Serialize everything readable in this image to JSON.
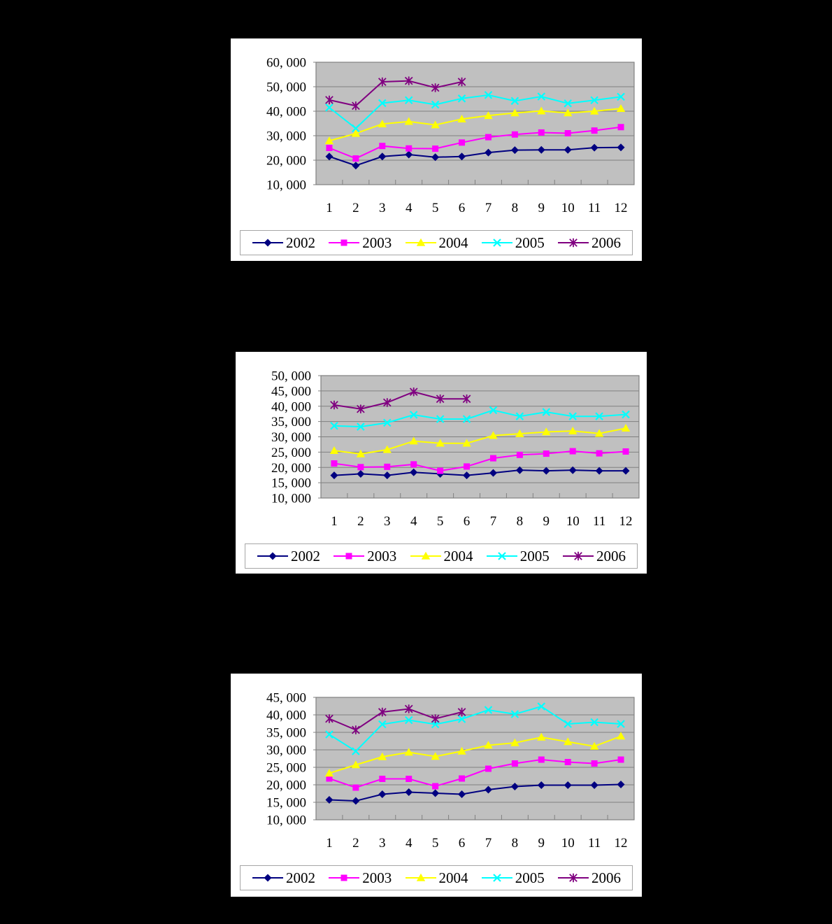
{
  "page": {
    "background": "#000000",
    "panel_background": "#ffffff"
  },
  "palette": {
    "plot_background": "#c0c0c0",
    "gridline": "#808080",
    "axis": "#808080",
    "tick_text": "#000000",
    "legend_border": "#a6a6a6"
  },
  "chart_data": [
    {
      "type": "line",
      "title": "",
      "xlabel": "",
      "ylabel": "",
      "grid": true,
      "legend_position": "bottom",
      "categories": [
        "1",
        "2",
        "3",
        "4",
        "5",
        "6",
        "7",
        "8",
        "9",
        "10",
        "11",
        "12"
      ],
      "ylim": [
        10000,
        60000
      ],
      "ytick_step": 10000,
      "ytick_labels": [
        "60, 000",
        "50, 000",
        "40, 000",
        "30, 000",
        "20, 000",
        "10, 000"
      ],
      "series": [
        {
          "name": "2002",
          "color": "#000080",
          "marker": "diamond",
          "values": [
            21500,
            17800,
            21500,
            22300,
            21200,
            21500,
            23100,
            24100,
            24200,
            24200,
            25100,
            25200
          ]
        },
        {
          "name": "2003",
          "color": "#ff00ff",
          "marker": "square",
          "values": [
            25000,
            20700,
            25800,
            24800,
            24700,
            27200,
            29400,
            30500,
            31300,
            31000,
            32100,
            33500
          ]
        },
        {
          "name": "2004",
          "color": "#ffff00",
          "marker": "triangle",
          "values": [
            27900,
            30900,
            34800,
            35800,
            34400,
            36800,
            38200,
            39300,
            40100,
            39300,
            40000,
            41100
          ]
        },
        {
          "name": "2005",
          "color": "#00ffff",
          "marker": "x",
          "values": [
            41500,
            33000,
            43300,
            44500,
            42700,
            45200,
            46600,
            44200,
            46000,
            43200,
            44500,
            45900
          ]
        },
        {
          "name": "2006",
          "color": "#800080",
          "marker": "star",
          "values": [
            44600,
            42200,
            52000,
            52400,
            49600,
            52000,
            null,
            null,
            null,
            null,
            null,
            null
          ]
        }
      ]
    },
    {
      "type": "line",
      "title": "",
      "xlabel": "",
      "ylabel": "",
      "grid": true,
      "legend_position": "bottom",
      "categories": [
        "1",
        "2",
        "3",
        "4",
        "5",
        "6",
        "7",
        "8",
        "9",
        "10",
        "11",
        "12"
      ],
      "ylim": [
        10000,
        50000
      ],
      "ytick_step": 5000,
      "ytick_labels": [
        "50, 000",
        "45, 000",
        "40, 000",
        "35, 000",
        "30, 000",
        "25, 000",
        "20, 000",
        "15, 000",
        "10, 000"
      ],
      "series": [
        {
          "name": "2002",
          "color": "#000080",
          "marker": "diamond",
          "values": [
            17400,
            17900,
            17400,
            18400,
            17900,
            17400,
            18200,
            19100,
            18900,
            19100,
            18900,
            18900
          ]
        },
        {
          "name": "2003",
          "color": "#ff00ff",
          "marker": "square",
          "values": [
            21300,
            20100,
            20200,
            21000,
            18900,
            20300,
            23000,
            24100,
            24500,
            25300,
            24600,
            25200
          ]
        },
        {
          "name": "2004",
          "color": "#ffff00",
          "marker": "triangle",
          "values": [
            25500,
            24400,
            25800,
            28600,
            27900,
            27900,
            30400,
            31000,
            31600,
            31900,
            31100,
            32800
          ]
        },
        {
          "name": "2005",
          "color": "#00ffff",
          "marker": "x",
          "values": [
            33600,
            33300,
            34600,
            37200,
            35800,
            35800,
            38700,
            36700,
            38100,
            36700,
            36700,
            37300
          ]
        },
        {
          "name": "2006",
          "color": "#800080",
          "marker": "star",
          "values": [
            40400,
            39100,
            41200,
            44700,
            42400,
            42400,
            null,
            null,
            null,
            null,
            null,
            null
          ]
        }
      ]
    },
    {
      "type": "line",
      "title": "",
      "xlabel": "",
      "ylabel": "",
      "grid": true,
      "legend_position": "bottom",
      "categories": [
        "1",
        "2",
        "3",
        "4",
        "5",
        "6",
        "7",
        "8",
        "9",
        "10",
        "11",
        "12"
      ],
      "ylim": [
        10000,
        45000
      ],
      "ytick_step": 5000,
      "ytick_labels": [
        "45, 000",
        "40, 000",
        "35, 000",
        "30, 000",
        "25, 000",
        "20, 000",
        "15, 000",
        "10, 000"
      ],
      "series": [
        {
          "name": "2002",
          "color": "#000080",
          "marker": "diamond",
          "values": [
            15700,
            15400,
            17300,
            17900,
            17600,
            17300,
            18600,
            19500,
            19900,
            19900,
            19900,
            20100
          ]
        },
        {
          "name": "2003",
          "color": "#ff00ff",
          "marker": "square",
          "values": [
            21800,
            19200,
            21700,
            21700,
            19600,
            21800,
            24600,
            26100,
            27200,
            26500,
            26100,
            27200
          ]
        },
        {
          "name": "2004",
          "color": "#ffff00",
          "marker": "triangle",
          "values": [
            23300,
            25700,
            28000,
            29300,
            28100,
            29600,
            31300,
            32000,
            33600,
            32300,
            31000,
            33900
          ]
        },
        {
          "name": "2005",
          "color": "#00ffff",
          "marker": "x",
          "values": [
            34400,
            29600,
            37300,
            38500,
            37300,
            38800,
            41400,
            40200,
            42400,
            37400,
            37900,
            37400
          ]
        },
        {
          "name": "2006",
          "color": "#800080",
          "marker": "star",
          "values": [
            38900,
            35700,
            40800,
            41700,
            38900,
            40800,
            null,
            null,
            null,
            null,
            null,
            null
          ]
        }
      ]
    }
  ]
}
